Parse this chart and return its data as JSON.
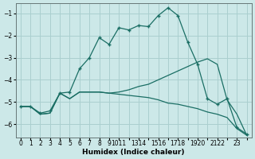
{
  "background_color": "#cce8e8",
  "grid_color": "#aacfcf",
  "line_color": "#1a6e64",
  "xlabel": "Humidex (Indice chaleur)",
  "x_values": [
    0,
    1,
    2,
    3,
    4,
    5,
    6,
    7,
    8,
    9,
    10,
    11,
    12,
    13,
    14,
    15,
    16,
    17,
    18,
    19,
    20,
    21,
    22,
    23
  ],
  "s_peak": [
    -5.2,
    -5.2,
    -5.5,
    -5.4,
    -4.6,
    -4.55,
    -3.5,
    -3.0,
    -2.1,
    -2.4,
    -1.65,
    -1.75,
    -1.55,
    -1.6,
    -1.1,
    -0.75,
    -1.1,
    -2.3,
    -3.3,
    -4.85,
    -5.1,
    -4.85,
    -6.15,
    -6.45
  ],
  "s_low": [
    -5.2,
    -5.2,
    -5.55,
    -5.5,
    -4.6,
    -4.85,
    -4.55,
    -4.55,
    -4.55,
    -4.6,
    -4.65,
    -4.7,
    -4.75,
    -4.8,
    -4.9,
    -5.05,
    -5.1,
    -5.2,
    -5.3,
    -5.45,
    -5.55,
    -5.7,
    -6.2,
    -6.5
  ],
  "s_mid": [
    -5.2,
    -5.2,
    -5.55,
    -5.5,
    -4.6,
    -4.85,
    -4.55,
    -4.55,
    -4.55,
    -4.6,
    -4.55,
    -4.45,
    -4.3,
    -4.2,
    -4.0,
    -3.8,
    -3.6,
    -3.4,
    -3.2,
    -3.05,
    -3.3,
    -4.9,
    -5.55,
    -6.5
  ],
  "ylim": [
    -6.6,
    -0.55
  ],
  "yticks": [
    -6,
    -5,
    -4,
    -3,
    -2,
    -1
  ],
  "xtick_labels": [
    "0",
    "1",
    "2",
    "3",
    "4",
    "5",
    "6",
    "7",
    "8",
    "9",
    "1011",
    "",
    "1314",
    "",
    "1516",
    "",
    "1718",
    "",
    "1920",
    "",
    "2122",
    "",
    "23",
    ""
  ],
  "xlabel_fontsize": 6.5,
  "tick_fontsize": 5.5
}
